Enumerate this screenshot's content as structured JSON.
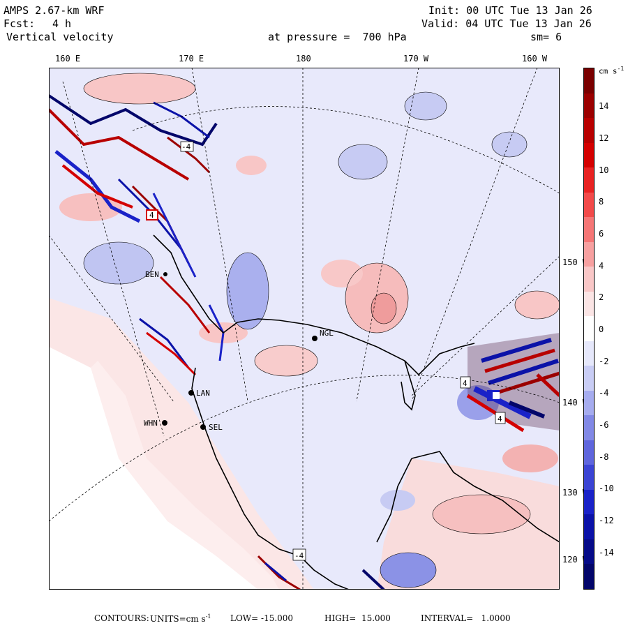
{
  "header": {
    "model": "AMPS 2.67-km WRF",
    "fcst_label": "Fcst:",
    "fcst_value": "4 h",
    "field": "Vertical velocity",
    "init": "Init: 00 UTC Tue 13 Jan 26",
    "valid": "Valid: 04 UTC Tue 13 Jan 26",
    "pressure": "at pressure =  700 hPa",
    "smoothing": "sm= 6"
  },
  "longitude_labels": [
    "160 E",
    "170 E",
    "180",
    "170 W",
    "160 W"
  ],
  "latitude_labels": [
    "150 W",
    "140 W",
    "130 W",
    "120 W"
  ],
  "stations": [
    "NGL",
    "LAN",
    "WHN",
    "SEL",
    "BEN"
  ],
  "contour_labels": [
    "4",
    "-4",
    "4",
    "4",
    "-4"
  ],
  "colorbar": {
    "units": "cm s",
    "units_exp": "-1",
    "ticks": [
      "14",
      "12",
      "10",
      "8",
      "6",
      "4",
      "2",
      "0",
      "-2",
      "-4",
      "-6",
      "-8",
      "-10",
      "-12",
      "-14"
    ],
    "colors": [
      "#7a0000",
      "#9b0000",
      "#b80000",
      "#d40000",
      "#e82222",
      "#f24a4a",
      "#f57676",
      "#f7a0a0",
      "#f9c7c7",
      "#fbe5e5",
      "#ffffff",
      "#e6e8fb",
      "#c9cdf5",
      "#a6acef",
      "#8289e6",
      "#5f66dd",
      "#3b44d4",
      "#1a22c8",
      "#0b12a8",
      "#060b88",
      "#03066a"
    ]
  },
  "footer": {
    "contours": "CONTOURS:",
    "units": "UNITS=cm s",
    "units_exp": "-1",
    "low": "LOW= -15.000",
    "high": "HIGH=  15.000",
    "interval": "INTERVAL=   1.0000"
  }
}
